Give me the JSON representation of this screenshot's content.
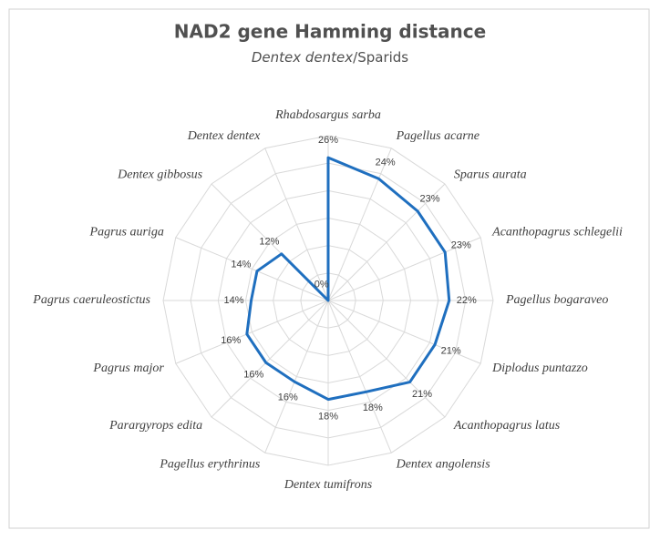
{
  "chart_data": {
    "type": "radar",
    "title": "NAD2 gene Hamming distance",
    "subtitle": [
      {
        "text": "Dentex dentex",
        "italic": true
      },
      {
        "text": "/Sparids",
        "italic": false
      }
    ],
    "categories": [
      "Rhabdosargus sarba",
      "Pagellus acarne",
      "Sparus aurata",
      "Acanthopagrus schlegelii",
      "Pagellus bogaraveo",
      "Diplodus puntazzo",
      "Acanthopagrus latus",
      "Dentex angolensis",
      "Dentex tumifrons",
      "Pagellus erythrinus",
      "Parargyrops edita",
      "Pagrus major",
      "Pagrus caeruleostictus",
      "Pagrus auriga",
      "Dentex gibbosus",
      "Dentex dentex"
    ],
    "values": [
      26,
      24,
      23,
      23,
      22,
      21,
      21,
      18,
      18,
      16,
      16,
      16,
      14,
      14,
      12,
      0
    ],
    "value_labels": [
      "26%",
      "24%",
      "23%",
      "23%",
      "22%",
      "21%",
      "21%",
      "18%",
      "18%",
      "16%",
      "16%",
      "16%",
      "14%",
      "14%",
      "12%",
      "0%"
    ],
    "color": "#1f6fbf",
    "ylim": [
      0,
      30
    ],
    "yticks": [
      0,
      5,
      10,
      15,
      20,
      25,
      30
    ],
    "grid": true
  }
}
